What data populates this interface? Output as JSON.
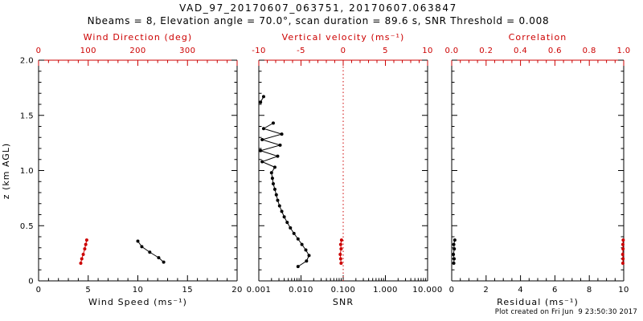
{
  "header": {
    "title": "VAD_97_20170607_063751, 20170607.063847",
    "subtitle": "Nbeams = 8, Elevation angle = 70.0°, scan duration = 89.6 s, SNR Threshold = 0.008"
  },
  "footer": {
    "created": "Plot created on Fri Jun  9 23:50:30 2017"
  },
  "axes": {
    "ylabel": "z (km AGL)"
  },
  "colors": {
    "black": "#000000",
    "red": "#cc0000",
    "background": "#ffffff"
  },
  "chart_data": [
    {
      "type": "line",
      "panel": "wind",
      "x_scale": "linear",
      "xlabel_bottom": "Wind Speed (ms⁻¹)",
      "xlabel_top": "Wind Direction (deg)",
      "x_bottom_range": [
        0,
        20
      ],
      "x_bottom_ticks": {
        "values": [
          0,
          5,
          10,
          15,
          20
        ],
        "labels": [
          "0",
          "5",
          "10",
          "15",
          "20"
        ],
        "minor_div": 5
      },
      "x_top_range": [
        0,
        400
      ],
      "x_top_ticks": {
        "values": [
          0,
          100,
          200,
          300,
          400
        ],
        "labels": [
          "0",
          "100",
          "200",
          "300",
          ""
        ],
        "minor_div": 5
      },
      "ylim": [
        0,
        2
      ],
      "yticks": {
        "values": [
          0,
          0.5,
          1,
          1.5,
          2
        ],
        "labels": [
          "0",
          "0.5",
          "1.0",
          "1.5",
          "2.0"
        ],
        "minor_div": 5,
        "show_labels": true
      },
      "series": [
        {
          "name": "wind-speed",
          "axis": "bottom",
          "color": "black",
          "z": [
            0.36,
            0.31,
            0.26,
            0.21,
            0.17
          ],
          "values": [
            10.0,
            10.4,
            11.2,
            12.1,
            12.6
          ]
        },
        {
          "name": "wind-direction",
          "axis": "top",
          "color": "red",
          "z": [
            0.37,
            0.33,
            0.29,
            0.24,
            0.2,
            0.16
          ],
          "values": [
            97,
            95,
            93,
            90,
            87,
            85
          ]
        }
      ]
    },
    {
      "type": "line",
      "panel": "snr",
      "x_scale": "log",
      "xlabel_bottom": "SNR",
      "xlabel_top": "Vertical velocity (ms⁻¹)",
      "x_bottom_range": [
        0.001,
        10
      ],
      "x_bottom_ticks": {
        "values": [
          0.001,
          0.01,
          0.1,
          1,
          10
        ],
        "labels": [
          "0.001",
          "0.010",
          "0.100",
          "1.000",
          "10.000"
        ]
      },
      "x_top_range": [
        -10,
        10
      ],
      "x_top_ticks": {
        "values": [
          -10,
          -5,
          0,
          5,
          10
        ],
        "labels": [
          "-10",
          "-5",
          "0",
          "5",
          "10"
        ],
        "minor_div": 5
      },
      "ylim": [
        0,
        2
      ],
      "yticks": {
        "values": [
          0,
          0.5,
          1,
          1.5,
          2
        ],
        "labels": [
          "0",
          "0.5",
          "1.0",
          "1.5",
          "2.0"
        ],
        "minor_div": 5,
        "show_labels": false
      },
      "reflines": [
        {
          "axis": "top",
          "value": 0,
          "color": "red",
          "style": "dotted"
        }
      ],
      "series": [
        {
          "name": "snr-profile",
          "axis": "bottom",
          "color": "black",
          "z": [
            1.43,
            1.38,
            1.33,
            1.28,
            1.23,
            1.18,
            1.13,
            1.08,
            1.03,
            0.98,
            0.93,
            0.88,
            0.83,
            0.78,
            0.73,
            0.68,
            0.63,
            0.58,
            0.53,
            0.48,
            0.43,
            0.38,
            0.33,
            0.28,
            0.23,
            0.18,
            0.13
          ],
          "values": [
            0.0022,
            0.0013,
            0.0035,
            0.0012,
            0.0032,
            0.0011,
            0.0028,
            0.0012,
            0.0024,
            0.002,
            0.0021,
            0.0022,
            0.0024,
            0.0026,
            0.0028,
            0.0031,
            0.0035,
            0.004,
            0.0047,
            0.0056,
            0.0068,
            0.0085,
            0.0105,
            0.013,
            0.0155,
            0.0135,
            0.0085
          ]
        },
        {
          "name": "snr-isolated",
          "axis": "bottom",
          "color": "black",
          "z": [
            1.67,
            1.62
          ],
          "values": [
            0.0013,
            0.0011
          ]
        },
        {
          "name": "vertical-velocity",
          "axis": "top",
          "color": "red",
          "z": [
            0.37,
            0.33,
            0.29,
            0.24,
            0.2,
            0.16
          ],
          "values": [
            -0.2,
            -0.3,
            -0.25,
            -0.35,
            -0.3,
            -0.25
          ]
        }
      ]
    },
    {
      "type": "line",
      "panel": "residual",
      "x_scale": "linear",
      "xlabel_bottom": "Residual (ms⁻¹)",
      "xlabel_top": "Correlation",
      "x_bottom_range": [
        0,
        10
      ],
      "x_bottom_ticks": {
        "values": [
          0,
          2,
          4,
          6,
          8,
          10
        ],
        "labels": [
          "0",
          "2",
          "4",
          "6",
          "8",
          "10"
        ],
        "minor_div": 4
      },
      "x_top_range": [
        0,
        1
      ],
      "x_top_ticks": {
        "values": [
          0,
          0.2,
          0.4,
          0.6,
          0.8,
          1
        ],
        "labels": [
          "0.0",
          "0.2",
          "0.4",
          "0.6",
          "0.8",
          "1.0"
        ],
        "minor_div": 4
      },
      "ylim": [
        0,
        2
      ],
      "yticks": {
        "values": [
          0,
          0.5,
          1,
          1.5,
          2
        ],
        "labels": [
          "0",
          "0.5",
          "1.0",
          "1.5",
          "2.0"
        ],
        "minor_div": 5,
        "show_labels": false
      },
      "series": [
        {
          "name": "residual",
          "axis": "bottom",
          "color": "black",
          "z": [
            0.37,
            0.33,
            0.29,
            0.24,
            0.2,
            0.16
          ],
          "values": [
            0.18,
            0.12,
            0.15,
            0.1,
            0.14,
            0.12
          ]
        },
        {
          "name": "correlation",
          "axis": "top",
          "color": "red",
          "z": [
            0.37,
            0.33,
            0.29,
            0.24,
            0.2,
            0.16
          ],
          "values": [
            0.997,
            0.995,
            0.996,
            0.994,
            0.996,
            0.995
          ]
        }
      ]
    }
  ]
}
